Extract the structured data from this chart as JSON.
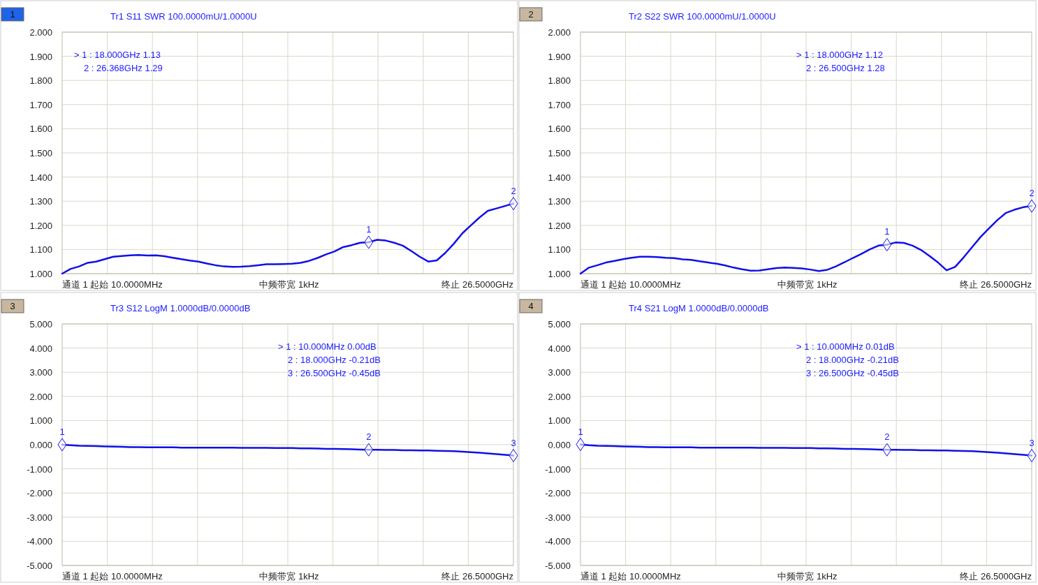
{
  "chart_data": [
    {
      "type": "line",
      "title": "Tr1 S11 SWR 100.0000mU/1.0000U",
      "categories": [
        null,
        null,
        null,
        null,
        null,
        null,
        null,
        null,
        null,
        null,
        null,
        null,
        null,
        null,
        null,
        null,
        null,
        null,
        null,
        null,
        null,
        null,
        null,
        null,
        null,
        null,
        null,
        null,
        null,
        null,
        null,
        null,
        null,
        null,
        null,
        null,
        null,
        null,
        null,
        null,
        null,
        null,
        null,
        null,
        null,
        null,
        null,
        null,
        null,
        null,
        null,
        null,
        null,
        null
      ],
      "series": [
        {
          "color": "#1010e8",
          "values": [
            1.0,
            1.02,
            1.03,
            1.045,
            1.05,
            1.06,
            1.07,
            1.073,
            1.076,
            1.077,
            1.075,
            1.076,
            1.072,
            1.066,
            1.06,
            1.054,
            1.05,
            1.042,
            1.035,
            1.03,
            1.028,
            1.029,
            1.031,
            1.035,
            1.039,
            1.039,
            1.04,
            1.041,
            1.045,
            1.053,
            1.065,
            1.08,
            1.092,
            1.11,
            1.118,
            1.128,
            1.13,
            1.14,
            1.137,
            1.128,
            1.116,
            1.094,
            1.07,
            1.05,
            1.055,
            1.086,
            1.124,
            1.167,
            1.2,
            1.232,
            1.26,
            1.27,
            1.28,
            1.29
          ]
        },
        {
          "type": "scatter",
          "color": "#1010e8",
          "marker": "diamond",
          "values": [
            null,
            null,
            null,
            null,
            null,
            null,
            null,
            null,
            null,
            null,
            null,
            null,
            null,
            null,
            null,
            null,
            null,
            null,
            null,
            null,
            null,
            null,
            null,
            null,
            null,
            null,
            null,
            null,
            null,
            null,
            null,
            null,
            null,
            null,
            null,
            null,
            1.13,
            null,
            null,
            null,
            null,
            null,
            null,
            null,
            null,
            null,
            null,
            null,
            null,
            null,
            null,
            null,
            null,
            1.29
          ]
        }
      ],
      "ylim": [
        1,
        2
      ],
      "yticks": [
        {
          "value": 1,
          "label": "1.000"
        },
        {
          "value": 1.1,
          "label": "1.100"
        },
        {
          "value": 1.2,
          "label": "1.200"
        },
        {
          "value": 1.3,
          "label": "1.300"
        },
        {
          "value": 1.4,
          "label": "1.400"
        },
        {
          "value": 1.5,
          "label": "1.500"
        },
        {
          "value": 1.6,
          "label": "1.600"
        },
        {
          "value": 1.7,
          "label": "1.700"
        },
        {
          "value": 1.8,
          "label": "1.800"
        },
        {
          "value": 1.9,
          "label": "1.900"
        },
        {
          "value": 2,
          "label": "2.000"
        }
      ],
      "grid": true,
      "annotations": [
        "1",
        "通道 1 起始 10.0000MHz",
        "中频带宽 1kHz",
        "终止 26.5000GHz",
        "> 1 : 18.000GHz 1.13",
        "2 : 26.368GHz 1.29",
        "1",
        "2"
      ]
    },
    {
      "type": "line",
      "title": "Tr2 S22 SWR 100.0000mU/1.0000U",
      "categories": [
        null,
        null,
        null,
        null,
        null,
        null,
        null,
        null,
        null,
        null,
        null,
        null,
        null,
        null,
        null,
        null,
        null,
        null,
        null,
        null,
        null,
        null,
        null,
        null,
        null,
        null,
        null,
        null,
        null,
        null,
        null,
        null,
        null,
        null,
        null,
        null,
        null,
        null,
        null,
        null,
        null,
        null,
        null,
        null,
        null,
        null,
        null,
        null,
        null,
        null,
        null,
        null,
        null,
        null
      ],
      "series": [
        {
          "color": "#1010e8",
          "values": [
            1.0,
            1.025,
            1.035,
            1.046,
            1.053,
            1.06,
            1.066,
            1.07,
            1.07,
            1.069,
            1.066,
            1.064,
            1.059,
            1.057,
            1.051,
            1.046,
            1.041,
            1.034,
            1.025,
            1.018,
            1.012,
            1.013,
            1.018,
            1.023,
            1.025,
            1.024,
            1.022,
            1.017,
            1.011,
            1.016,
            1.03,
            1.047,
            1.065,
            1.082,
            1.101,
            1.116,
            1.12,
            1.129,
            1.127,
            1.116,
            1.098,
            1.073,
            1.046,
            1.014,
            1.028,
            1.067,
            1.11,
            1.152,
            1.188,
            1.223,
            1.252,
            1.265,
            1.275,
            1.28
          ]
        },
        {
          "type": "scatter",
          "color": "#1010e8",
          "marker": "diamond",
          "values": [
            null,
            null,
            null,
            null,
            null,
            null,
            null,
            null,
            null,
            null,
            null,
            null,
            null,
            null,
            null,
            null,
            null,
            null,
            null,
            null,
            null,
            null,
            null,
            null,
            null,
            null,
            null,
            null,
            null,
            null,
            null,
            null,
            null,
            null,
            null,
            null,
            1.12,
            null,
            null,
            null,
            null,
            null,
            null,
            null,
            null,
            null,
            null,
            null,
            null,
            null,
            null,
            null,
            null,
            1.28
          ]
        }
      ],
      "ylim": [
        1,
        2
      ],
      "yticks": [
        {
          "value": 1,
          "label": "1.000"
        },
        {
          "value": 1.1,
          "label": "1.100"
        },
        {
          "value": 1.2,
          "label": "1.200"
        },
        {
          "value": 1.3,
          "label": "1.300"
        },
        {
          "value": 1.4,
          "label": "1.400"
        },
        {
          "value": 1.5,
          "label": "1.500"
        },
        {
          "value": 1.6,
          "label": "1.600"
        },
        {
          "value": 1.7,
          "label": "1.700"
        },
        {
          "value": 1.8,
          "label": "1.800"
        },
        {
          "value": 1.9,
          "label": "1.900"
        },
        {
          "value": 2,
          "label": "2.000"
        }
      ],
      "grid": true,
      "annotations": [
        "2",
        "通道 1 起始 10.0000MHz",
        "中频带宽 1kHz",
        "终止 26.5000GHz",
        "> 1 : 18.000GHz 1.12",
        "2 : 26.500GHz 1.28",
        "1",
        "2"
      ]
    },
    {
      "type": "line",
      "title": "Tr3 S12 LogM 1.0000dB/0.0000dB",
      "categories": [
        null,
        null,
        null,
        null,
        null,
        null,
        null,
        null,
        null,
        null,
        null,
        null,
        null,
        null,
        null,
        null,
        null,
        null,
        null,
        null,
        null,
        null,
        null,
        null,
        null,
        null,
        null,
        null,
        null,
        null,
        null,
        null,
        null,
        null,
        null,
        null,
        null,
        null,
        null,
        null,
        null,
        null,
        null,
        null,
        null,
        null,
        null,
        null,
        null,
        null,
        null,
        null,
        null,
        null
      ],
      "series": [
        {
          "color": "#1010e8",
          "values": [
            0.0,
            -0.02,
            -0.04,
            -0.05,
            -0.06,
            -0.07,
            -0.08,
            -0.09,
            -0.1,
            -0.1,
            -0.11,
            -0.11,
            -0.11,
            -0.11,
            -0.12,
            -0.12,
            -0.12,
            -0.12,
            -0.12,
            -0.12,
            -0.12,
            -0.13,
            -0.13,
            -0.13,
            -0.13,
            -0.14,
            -0.14,
            -0.14,
            -0.15,
            -0.15,
            -0.16,
            -0.17,
            -0.17,
            -0.18,
            -0.19,
            -0.2,
            -0.21,
            -0.21,
            -0.22,
            -0.22,
            -0.23,
            -0.23,
            -0.24,
            -0.24,
            -0.25,
            -0.26,
            -0.27,
            -0.29,
            -0.31,
            -0.33,
            -0.36,
            -0.39,
            -0.42,
            -0.45
          ]
        },
        {
          "type": "scatter",
          "color": "#1010e8",
          "marker": "diamond",
          "values": [
            0.0,
            null,
            null,
            null,
            null,
            null,
            null,
            null,
            null,
            null,
            null,
            null,
            null,
            null,
            null,
            null,
            null,
            null,
            null,
            null,
            null,
            null,
            null,
            null,
            null,
            null,
            null,
            null,
            null,
            null,
            null,
            null,
            null,
            null,
            null,
            null,
            -0.21,
            null,
            null,
            null,
            null,
            null,
            null,
            null,
            null,
            null,
            null,
            null,
            null,
            null,
            null,
            null,
            null,
            -0.45
          ]
        }
      ],
      "ylim": [
        -5,
        5
      ],
      "yticks": [
        {
          "value": -5,
          "label": "-5.000"
        },
        {
          "value": -4,
          "label": "-4.000"
        },
        {
          "value": -3,
          "label": "-3.000"
        },
        {
          "value": -2,
          "label": "-2.000"
        },
        {
          "value": -1,
          "label": "-1.000"
        },
        {
          "value": 0,
          "label": "0.000"
        },
        {
          "value": 1,
          "label": "1.000"
        },
        {
          "value": 2,
          "label": "2.000"
        },
        {
          "value": 3,
          "label": "3.000"
        },
        {
          "value": 4,
          "label": "4.000"
        },
        {
          "value": 5,
          "label": "5.000"
        }
      ],
      "grid": true,
      "annotations": [
        "3",
        "通道 1 起始 10.0000MHz",
        "中频带宽 1kHz",
        "终止 26.5000GHz",
        "> 1 : 10.000MHz 0.00dB",
        "2 : 18.000GHz -0.21dB",
        "3 : 26.500GHz -0.45dB",
        "1",
        "2",
        "3"
      ]
    },
    {
      "type": "line",
      "title": "Tr4 S21 LogM 1.0000dB/0.0000dB",
      "categories": [
        null,
        null,
        null,
        null,
        null,
        null,
        null,
        null,
        null,
        null,
        null,
        null,
        null,
        null,
        null,
        null,
        null,
        null,
        null,
        null,
        null,
        null,
        null,
        null,
        null,
        null,
        null,
        null,
        null,
        null,
        null,
        null,
        null,
        null,
        null,
        null,
        null,
        null,
        null,
        null,
        null,
        null,
        null,
        null,
        null,
        null,
        null,
        null,
        null,
        null,
        null,
        null,
        null,
        null
      ],
      "series": [
        {
          "color": "#1010e8",
          "values": [
            0.01,
            -0.02,
            -0.04,
            -0.05,
            -0.06,
            -0.07,
            -0.08,
            -0.09,
            -0.1,
            -0.1,
            -0.11,
            -0.11,
            -0.11,
            -0.11,
            -0.12,
            -0.12,
            -0.12,
            -0.12,
            -0.12,
            -0.12,
            -0.12,
            -0.13,
            -0.13,
            -0.13,
            -0.13,
            -0.14,
            -0.14,
            -0.14,
            -0.15,
            -0.15,
            -0.16,
            -0.17,
            -0.17,
            -0.18,
            -0.19,
            -0.2,
            -0.21,
            -0.21,
            -0.22,
            -0.22,
            -0.23,
            -0.23,
            -0.24,
            -0.24,
            -0.25,
            -0.26,
            -0.27,
            -0.29,
            -0.31,
            -0.33,
            -0.36,
            -0.39,
            -0.42,
            -0.45
          ]
        },
        {
          "type": "scatter",
          "color": "#1010e8",
          "marker": "diamond",
          "values": [
            0.01,
            null,
            null,
            null,
            null,
            null,
            null,
            null,
            null,
            null,
            null,
            null,
            null,
            null,
            null,
            null,
            null,
            null,
            null,
            null,
            null,
            null,
            null,
            null,
            null,
            null,
            null,
            null,
            null,
            null,
            null,
            null,
            null,
            null,
            null,
            null,
            -0.21,
            null,
            null,
            null,
            null,
            null,
            null,
            null,
            null,
            null,
            null,
            null,
            null,
            null,
            null,
            null,
            null,
            -0.45
          ]
        }
      ],
      "ylim": [
        -5,
        5
      ],
      "yticks": [
        {
          "value": -5,
          "label": "-5.000"
        },
        {
          "value": -4,
          "label": "-4.000"
        },
        {
          "value": -3,
          "label": "-3.000"
        },
        {
          "value": -2,
          "label": "-2.000"
        },
        {
          "value": -1,
          "label": "-1.000"
        },
        {
          "value": 0,
          "label": "0.000"
        },
        {
          "value": 1,
          "label": "1.000"
        },
        {
          "value": 2,
          "label": "2.000"
        },
        {
          "value": 3,
          "label": "3.000"
        },
        {
          "value": 4,
          "label": "4.000"
        },
        {
          "value": 5,
          "label": "5.000"
        }
      ],
      "grid": true,
      "annotations": [
        "4",
        "通道 1 起始 10.0000MHz",
        "中频带宽 1kHz",
        "终止 26.5000GHz",
        "> 1 : 10.000MHz 0.01dB",
        "2 : 18.000GHz -0.21dB",
        "3 : 26.500GHz -0.45dB",
        "1",
        "2",
        "3"
      ]
    }
  ]
}
